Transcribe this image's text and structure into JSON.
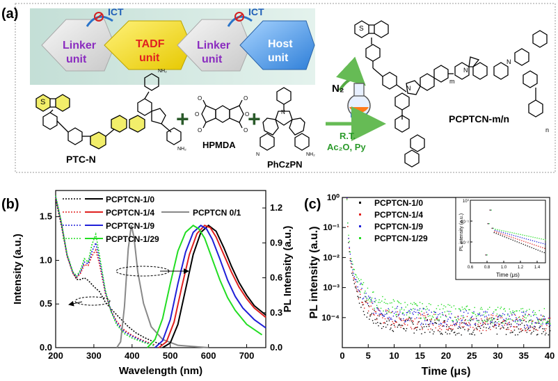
{
  "panel_a": {
    "label": "(a)",
    "blocks": [
      {
        "line1": "Linker",
        "line2": "unit"
      },
      {
        "line1": "TADF",
        "line2": "unit"
      },
      {
        "line1": "Linker",
        "line2": "unit"
      },
      {
        "line1": "Host",
        "line2": "unit"
      }
    ],
    "ict_labels": [
      "ICT",
      "ICT"
    ],
    "reactants": {
      "ptc": "PTC-N",
      "hpmda": "HPMDA",
      "phczpn": "PhCzPN",
      "ptc_nh2_top": "NH₂",
      "ptc_nh2_bottom": "NH₂",
      "phczpn_n_left": "N",
      "phczpn_n_right": "NH₂"
    },
    "plus": "+",
    "conditions": {
      "gas": "N₂",
      "line1": "R.T.",
      "line2": "Ac₂O, Py"
    },
    "product": {
      "name": "PCPTCN-m/n",
      "m": "m",
      "n": "n",
      "atom_s": "S",
      "atom_n": "N",
      "atom_o": "O"
    }
  },
  "chart_data": [
    {
      "type": "line",
      "panel_label": "(b)",
      "xlabel": "Wavelength (nm)",
      "ylabel_left": "Intensity (a.u.)",
      "ylabel_right": "PL Intensity (a.u.)",
      "xlim": [
        200,
        750
      ],
      "ylim_left": [
        0,
        1.8
      ],
      "ylim_right": [
        0,
        1.35
      ],
      "x_ticks": [
        200,
        300,
        400,
        500,
        600,
        700
      ],
      "y_ticks_left": [
        "0.0",
        "0.5",
        "1.0",
        "1.5"
      ],
      "y_ticks_right": [
        "0.0",
        "0.3",
        "0.6",
        "0.9",
        "1.2"
      ],
      "legend": [
        {
          "name": "PCPTCN-1/0",
          "color": "#000000"
        },
        {
          "name": "PCPTCN-1/4",
          "color": "#e0201e"
        },
        {
          "name": "PCPTCN-1/9",
          "color": "#1f1fd8"
        },
        {
          "name": "PCPTCN-1/29",
          "color": "#22dd22"
        },
        {
          "name": "PCPTCN 0/1",
          "color": "#888888"
        }
      ],
      "absorption_series": [
        {
          "name": "PCPTCN-1/0",
          "color": "#000000",
          "x": [
            200,
            215,
            230,
            245,
            255,
            265,
            275,
            285,
            300,
            315,
            330,
            350,
            370,
            390,
            410,
            430,
            450,
            480
          ],
          "y": [
            1.7,
            1.4,
            1.05,
            0.86,
            0.78,
            0.78,
            0.8,
            0.77,
            0.7,
            0.64,
            0.52,
            0.42,
            0.33,
            0.24,
            0.17,
            0.12,
            0.08,
            0.03
          ]
        },
        {
          "name": "PCPTCN-1/4",
          "color": "#e0201e",
          "x": [
            200,
            215,
            230,
            245,
            255,
            265,
            275,
            285,
            295,
            305,
            315,
            330,
            345,
            360,
            380,
            400,
            430,
            460
          ],
          "y": [
            1.72,
            1.42,
            1.05,
            0.85,
            0.8,
            0.85,
            0.95,
            0.94,
            1.05,
            1.12,
            0.95,
            0.62,
            0.42,
            0.3,
            0.2,
            0.14,
            0.08,
            0.03
          ]
        },
        {
          "name": "PCPTCN-1/9",
          "color": "#1f1fd8",
          "x": [
            200,
            215,
            230,
            245,
            255,
            265,
            275,
            285,
            295,
            305,
            315,
            330,
            345,
            360,
            380,
            400,
            430,
            460
          ],
          "y": [
            1.73,
            1.43,
            1.06,
            0.86,
            0.81,
            0.87,
            0.98,
            0.96,
            1.1,
            1.2,
            1.0,
            0.64,
            0.42,
            0.28,
            0.18,
            0.13,
            0.07,
            0.02
          ]
        },
        {
          "name": "PCPTCN-1/29",
          "color": "#22dd22",
          "x": [
            200,
            215,
            230,
            245,
            255,
            265,
            275,
            285,
            295,
            305,
            315,
            330,
            345,
            360,
            380,
            400,
            430,
            460
          ],
          "y": [
            1.74,
            1.44,
            1.07,
            0.87,
            0.82,
            0.89,
            1.02,
            0.98,
            1.18,
            1.3,
            1.05,
            0.66,
            0.41,
            0.26,
            0.16,
            0.11,
            0.06,
            0.02
          ]
        }
      ],
      "pl_series": [
        {
          "name": "PCPTCN 0/1",
          "color": "#888888",
          "x": [
            360,
            370,
            380,
            390,
            398,
            405,
            415,
            430,
            450,
            480,
            520,
            560,
            600
          ],
          "y": [
            0,
            0.05,
            0.35,
            0.85,
            1.05,
            0.95,
            0.65,
            0.38,
            0.18,
            0.07,
            0.02,
            0.01,
            0
          ]
        },
        {
          "name": "PCPTCN-1/0",
          "color": "#000000",
          "x": [
            480,
            500,
            520,
            540,
            560,
            580,
            600,
            620,
            640,
            660,
            680,
            700,
            720,
            750
          ],
          "y": [
            0,
            0.04,
            0.2,
            0.5,
            0.8,
            0.99,
            1.05,
            1.0,
            0.86,
            0.7,
            0.56,
            0.45,
            0.36,
            0.28
          ]
        },
        {
          "name": "PCPTCN-1/4",
          "color": "#e0201e",
          "x": [
            470,
            490,
            510,
            530,
            550,
            570,
            590,
            605,
            620,
            640,
            660,
            680,
            700,
            720,
            750
          ],
          "y": [
            0,
            0.05,
            0.22,
            0.52,
            0.8,
            0.98,
            1.05,
            1.03,
            0.95,
            0.8,
            0.65,
            0.52,
            0.42,
            0.34,
            0.26
          ]
        },
        {
          "name": "PCPTCN-1/9",
          "color": "#1f1fd8",
          "x": [
            460,
            480,
            500,
            520,
            540,
            560,
            580,
            595,
            610,
            630,
            650,
            670,
            690,
            720,
            750
          ],
          "y": [
            0,
            0.06,
            0.24,
            0.55,
            0.82,
            0.99,
            1.05,
            1.02,
            0.93,
            0.76,
            0.58,
            0.44,
            0.34,
            0.24,
            0.17
          ]
        },
        {
          "name": "PCPTCN-1/29",
          "color": "#22dd22",
          "x": [
            440,
            460,
            480,
            500,
            520,
            540,
            560,
            575,
            590,
            610,
            630,
            650,
            670,
            700,
            740
          ],
          "y": [
            0,
            0.07,
            0.25,
            0.55,
            0.83,
            0.99,
            1.05,
            1.02,
            0.94,
            0.76,
            0.58,
            0.43,
            0.32,
            0.2,
            0.11
          ]
        }
      ]
    },
    {
      "type": "scatter",
      "panel_label": "(c)",
      "xlabel": "Time (μs)",
      "ylabel": "PL intensity (a.u.)",
      "xlim": [
        0,
        40
      ],
      "ylim_log10": [
        -5,
        0
      ],
      "x_ticks": [
        0,
        5,
        10,
        15,
        20,
        25,
        30,
        35,
        40
      ],
      "y_ticks": [
        "10⁻⁵",
        "10⁻⁴",
        "10⁻³",
        "10⁻²",
        "10⁻¹",
        "10⁰"
      ],
      "legend": [
        {
          "name": "PCPTCN-1/0",
          "color": "#000000"
        },
        {
          "name": "PCPTCN-1/4",
          "color": "#e0201e"
        },
        {
          "name": "PCPTCN-1/9",
          "color": "#1f1fd8"
        },
        {
          "name": "PCPTCN-1/29",
          "color": "#22dd22"
        }
      ],
      "series": [
        {
          "name": "PCPTCN-1/0",
          "color": "#000000",
          "t": [
            0.8,
            1,
            1.5,
            2,
            2.5,
            3,
            4,
            5,
            6,
            8,
            10,
            15,
            20,
            25,
            30,
            35,
            40
          ],
          "log10_y": [
            0,
            -1.2,
            -2.2,
            -2.7,
            -3.0,
            -3.3,
            -3.6,
            -3.85,
            -4.0,
            -4.15,
            -4.2,
            -4.25,
            -4.28,
            -4.3,
            -4.3,
            -4.3,
            -4.3
          ]
        },
        {
          "name": "PCPTCN-1/4",
          "color": "#e0201e",
          "t": [
            0.8,
            1,
            1.5,
            2,
            2.5,
            3,
            4,
            5,
            6,
            8,
            10,
            15,
            20,
            25,
            30,
            35,
            40
          ],
          "log10_y": [
            0,
            -1.15,
            -2.1,
            -2.6,
            -2.9,
            -3.15,
            -3.45,
            -3.65,
            -3.8,
            -3.95,
            -4.05,
            -4.1,
            -4.15,
            -4.15,
            -4.15,
            -4.15,
            -4.15
          ]
        },
        {
          "name": "PCPTCN-1/9",
          "color": "#1f1fd8",
          "t": [
            0.8,
            1,
            1.5,
            2,
            2.5,
            3,
            4,
            5,
            6,
            8,
            10,
            15,
            20,
            25,
            30,
            35,
            40
          ],
          "log10_y": [
            0,
            -1.1,
            -2.0,
            -2.45,
            -2.75,
            -2.95,
            -3.25,
            -3.45,
            -3.6,
            -3.75,
            -3.85,
            -3.95,
            -4.0,
            -4.02,
            -4.05,
            -4.05,
            -4.05
          ]
        },
        {
          "name": "PCPTCN-1/29",
          "color": "#22dd22",
          "t": [
            0.8,
            1,
            1.5,
            2,
            2.5,
            3,
            4,
            5,
            6,
            8,
            10,
            15,
            20,
            25,
            30,
            35,
            40
          ],
          "log10_y": [
            0,
            -1.0,
            -1.9,
            -2.3,
            -2.6,
            -2.8,
            -3.05,
            -3.25,
            -3.4,
            -3.55,
            -3.65,
            -3.75,
            -3.82,
            -3.86,
            -3.9,
            -3.92,
            -3.95
          ]
        }
      ],
      "inset": {
        "xlabel": "Time (μs)",
        "ylabel": "PL intensity (a.u.)",
        "xlim": [
          0.6,
          1.5
        ],
        "x_ticks": [
          "0.6",
          "0.8",
          "1.0",
          "1.2",
          "1.4"
        ],
        "y_ticks": [
          "10⁻²",
          "10⁻¹",
          "10⁰"
        ]
      }
    }
  ]
}
